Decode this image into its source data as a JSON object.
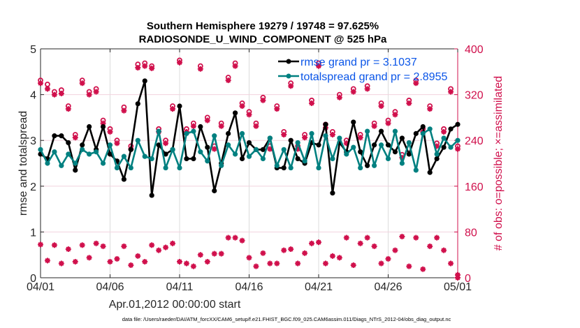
{
  "chart_data": {
    "type": "line",
    "title": [
      "Southern Hemisphere 19279 / 19748 = 97.625%",
      "RADIOSONDE_U_WIND_COMPONENT @ 525 hPa"
    ],
    "xlabel": "Apr.01,2012 00:00:00 start",
    "ylabel": "rmse and totalspread",
    "y2label": "# of obs: o=possible; ×=assimilated",
    "footer": "data file: /Users/raeder/DAI/ATM_forcXX/CAM6_setup/f.e21.FHIST_BGC.f09_025.CAM6assim.011/Diags_NTrS_2012-04/obs_diag_output.nc",
    "xlim": [
      0,
      30
    ],
    "ylim": [
      0,
      5
    ],
    "y2lim": [
      0,
      400
    ],
    "xticks": [
      0,
      5,
      10,
      15,
      20,
      25,
      30
    ],
    "xtick_labels": [
      "04/01",
      "04/06",
      "04/11",
      "04/16",
      "04/21",
      "04/26",
      "05/01"
    ],
    "yticks": [
      0,
      1,
      2,
      3,
      4,
      5
    ],
    "ytick_labels": [
      "0",
      "1",
      "2",
      "3",
      "4",
      "5"
    ],
    "y2ticks": [
      0,
      80,
      160,
      240,
      320,
      400
    ],
    "y2tick_labels": [
      "0",
      "80",
      "160",
      "240",
      "320",
      "400"
    ],
    "grid": true,
    "legend_position": "top-right",
    "colors": {
      "rmse": "#000000",
      "totalspread": "#008080",
      "obs": "#d0104c",
      "legend_text": "#0a55e8"
    },
    "x_step_days": 0.5,
    "series": [
      {
        "name": "rmse grand pr = 3.1037",
        "axis": "left",
        "marker": "filled-circle",
        "values": [
          2.7,
          2.6,
          3.1,
          3.1,
          2.95,
          2.35,
          2.9,
          3.3,
          2.8,
          3.3,
          2.7,
          2.55,
          2.15,
          2.8,
          3.8,
          4.3,
          1.8,
          2.9,
          2.7,
          2.8,
          3.75,
          2.6,
          2.6,
          3.3,
          2.85,
          1.9,
          2.5,
          3.15,
          3.6,
          2.6,
          2.95,
          2.8,
          2.8,
          3.05,
          2.4,
          2.4,
          3.0,
          2.6,
          2.5,
          2.95,
          2.9,
          3.35,
          1.85,
          2.95,
          2.75,
          3.4,
          2.75,
          2.45,
          2.9,
          3.2,
          2.9,
          2.75,
          3.05,
          2.7,
          3.15,
          3.3,
          2.3,
          2.6,
          2.85,
          3.25,
          3.35
        ]
      },
      {
        "name": "totalspread grand pr = 2.8955",
        "axis": "left",
        "marker": "filled-circle",
        "values": [
          2.8,
          2.5,
          2.75,
          2.45,
          2.7,
          2.5,
          2.8,
          2.7,
          2.75,
          2.5,
          2.9,
          2.4,
          2.65,
          2.4,
          3.0,
          2.65,
          2.6,
          3.2,
          2.4,
          2.8,
          2.4,
          3.15,
          3.2,
          2.75,
          2.55,
          3.1,
          2.45,
          2.9,
          2.7,
          3.15,
          2.65,
          2.8,
          2.6,
          3.05,
          2.45,
          2.8,
          2.4,
          2.95,
          2.55,
          3.15,
          2.4,
          3.1,
          2.6,
          3.05,
          2.7,
          2.85,
          2.4,
          3.2,
          2.45,
          2.9,
          2.6,
          3.2,
          2.5,
          2.95,
          2.35,
          3.15,
          3.25,
          2.7,
          3.05,
          2.85,
          3.0
        ]
      },
      {
        "name": "obs possible",
        "axis": "right",
        "marker": "open-circle",
        "values": [
          345,
          338,
          325,
          328,
          300,
          250,
          345,
          325,
          330,
          275,
          260,
          240,
          298,
          230,
          373,
          375,
          370,
          260,
          240,
          300,
          380,
          260,
          270,
          370,
          280,
          230,
          270,
          350,
          375,
          305,
          290,
          270,
          315,
          230,
          300,
          255,
          340,
          230,
          250,
          310,
          375,
          268,
          255,
          320,
          240,
          330,
          250,
          335,
          270,
          305,
          275,
          290,
          215,
          310,
          345,
          260,
          300,
          235,
          260,
          330,
          230
        ]
      },
      {
        "name": "obs assimilated",
        "axis": "right",
        "marker": "asterisk",
        "values": [
          340,
          330,
          320,
          322,
          295,
          245,
          340,
          320,
          325,
          270,
          255,
          235,
          292,
          225,
          367,
          370,
          366,
          255,
          235,
          295,
          376,
          255,
          265,
          365,
          275,
          225,
          265,
          345,
          370,
          300,
          285,
          265,
          310,
          225,
          295,
          250,
          335,
          225,
          245,
          305,
          370,
          262,
          250,
          315,
          235,
          325,
          245,
          330,
          265,
          300,
          270,
          285,
          210,
          305,
          340,
          255,
          295,
          230,
          255,
          325,
          225
        ]
      }
    ],
    "obs_lower": {
      "name": "lower obs count (possible/assimilated)",
      "axis": "right",
      "values": [
        58,
        30,
        57,
        25,
        50,
        28,
        57,
        35,
        60,
        55,
        28,
        33,
        55,
        22,
        38,
        28,
        57,
        48,
        53,
        60,
        28,
        25,
        20,
        40,
        28,
        42,
        42,
        70,
        70,
        65,
        35,
        20,
        43,
        25,
        25,
        48,
        50,
        25,
        43,
        60,
        62,
        25,
        38,
        35,
        70,
        22,
        60,
        70,
        55,
        25,
        33,
        48,
        72,
        20,
        70,
        15,
        55,
        70,
        48,
        25,
        5
      ]
    }
  }
}
